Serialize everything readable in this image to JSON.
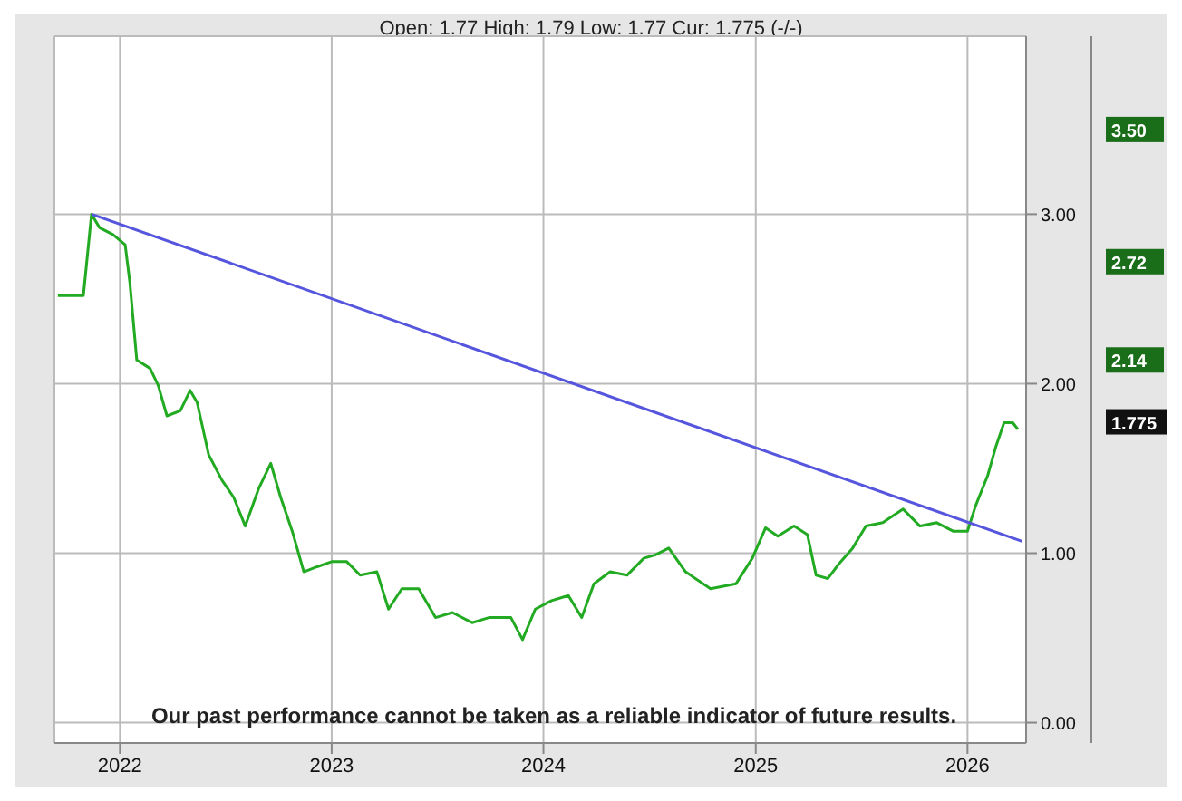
{
  "chart_data": {
    "type": "line",
    "subtitle": "Open: 1.77 High: 1.79 Low: 1.77 Cur: 1.775 (-/-)",
    "series": [
      {
        "color": "#22aa22",
        "x": [
          "2021-09-16",
          "2021-10-30",
          "2021-11-13",
          "2021-11-27",
          "2021-12-20",
          "2022-01-10",
          "2022-01-18",
          "2022-01-30",
          "2022-02-22",
          "2022-03-08",
          "2022-03-23",
          "2022-04-15",
          "2022-05-02",
          "2022-05-14",
          "2022-06-03",
          "2022-06-26",
          "2022-07-16",
          "2022-08-05",
          "2022-08-28",
          "2022-09-18",
          "2022-10-05",
          "2022-10-25",
          "2022-11-14",
          "2022-12-07",
          "2023-01-01",
          "2023-01-27",
          "2023-02-19",
          "2023-03-20",
          "2023-04-09",
          "2023-05-02",
          "2023-05-31",
          "2023-06-29",
          "2023-07-28",
          "2023-08-31",
          "2023-09-29",
          "2023-11-06",
          "2023-11-26",
          "2023-12-18",
          "2024-01-15",
          "2024-02-13",
          "2024-03-07",
          "2024-03-28",
          "2024-04-25",
          "2024-05-24",
          "2024-06-22",
          "2024-07-12",
          "2024-08-04",
          "2024-09-02",
          "2024-10-15",
          "2024-11-28",
          "2024-12-26",
          "2025-01-18",
          "2025-02-08",
          "2025-03-08",
          "2025-03-31",
          "2025-04-15",
          "2025-05-05",
          "2025-05-25",
          "2025-06-17",
          "2025-07-10",
          "2025-08-08",
          "2025-09-12",
          "2025-10-11",
          "2025-11-09",
          "2025-12-07",
          "2026-01-01",
          "2026-01-15",
          "2026-02-05",
          "2026-02-19",
          "2026-03-05",
          "2026-03-20",
          "2026-03-29"
        ],
        "values": [
          2.52,
          2.52,
          3.0,
          2.92,
          2.88,
          2.82,
          2.6,
          2.14,
          2.09,
          1.99,
          1.81,
          1.84,
          1.96,
          1.89,
          1.58,
          1.43,
          1.33,
          1.16,
          1.38,
          1.53,
          1.33,
          1.13,
          0.89,
          0.92,
          0.95,
          0.95,
          0.87,
          0.89,
          0.67,
          0.79,
          0.79,
          0.62,
          0.65,
          0.59,
          0.62,
          0.62,
          0.49,
          0.67,
          0.72,
          0.75,
          0.62,
          0.82,
          0.89,
          0.87,
          0.97,
          0.99,
          1.03,
          0.89,
          0.79,
          0.82,
          0.97,
          1.15,
          1.1,
          1.16,
          1.11,
          0.87,
          0.85,
          0.94,
          1.03,
          1.16,
          1.18,
          1.26,
          1.16,
          1.18,
          1.13,
          1.13,
          1.28,
          1.46,
          1.63,
          1.77,
          1.77,
          1.73
        ]
      },
      {
        "color": "#5555dd",
        "x": [
          "2021-11-13",
          "2026-04-05"
        ],
        "values": [
          3.0,
          1.07
        ]
      }
    ],
    "y2ticks": [
      {
        "value": 3.5,
        "label": "3.50"
      },
      {
        "value": 2.72,
        "label": "2.72"
      },
      {
        "value": 2.14,
        "label": "2.14"
      },
      {
        "value": 1.775,
        "label": "1.775"
      }
    ],
    "xlim": [
      "2021-09-10",
      "2026-04-12"
    ],
    "xticks": [
      {
        "value": "2022-01-01",
        "label": "2022"
      },
      {
        "value": "2023-01-01",
        "label": "2023"
      },
      {
        "value": "2024-01-01",
        "label": "2024"
      },
      {
        "value": "2025-01-01",
        "label": "2025"
      },
      {
        "value": "2026-01-01",
        "label": "2026"
      }
    ],
    "ylim": [
      -0.12,
      4.05
    ],
    "yticks": [
      {
        "value": 0,
        "label": "0.00"
      },
      {
        "value": 1,
        "label": "1.00"
      },
      {
        "value": 2,
        "label": "2.00"
      },
      {
        "value": 3,
        "label": "3.00"
      }
    ],
    "y2lim": [
      -0.12,
      4.05
    ],
    "grid": true,
    "annotations": [
      "Our past performance cannot be taken as a reliable indicator of future results."
    ]
  }
}
